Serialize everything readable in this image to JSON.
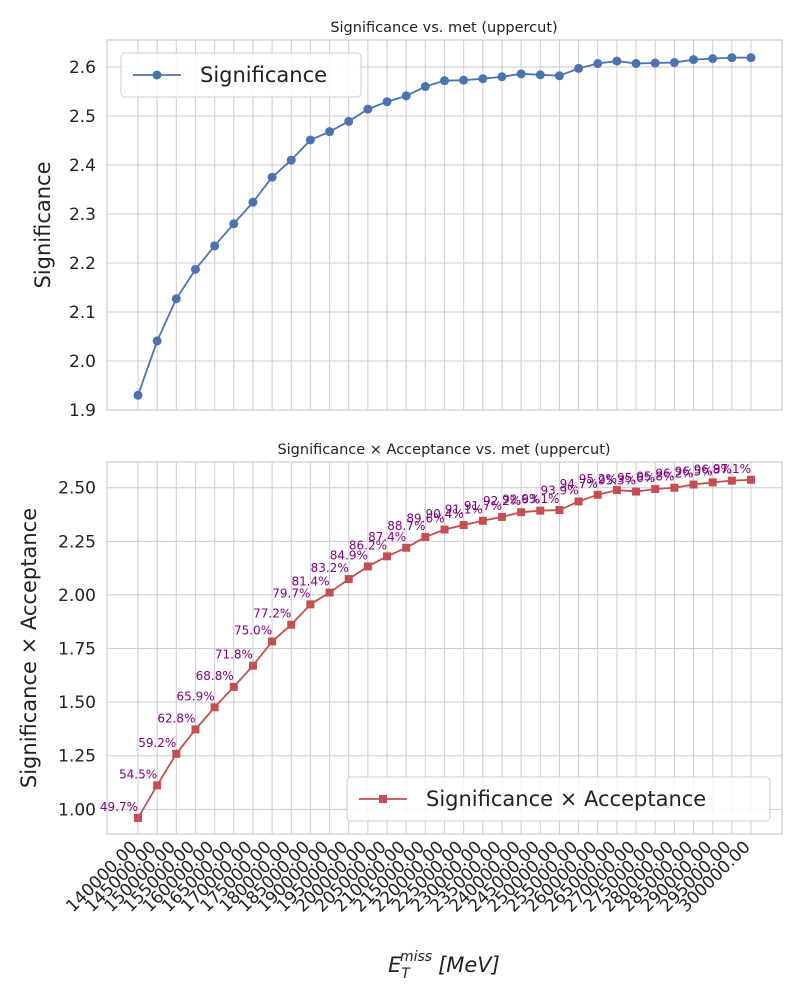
{
  "x_tick_labels": [
    "140000.00",
    "145000.00",
    "150000.00",
    "155000.00",
    "160000.00",
    "165000.00",
    "170000.00",
    "175000.00",
    "180000.00",
    "185000.00",
    "190000.00",
    "195000.00",
    "200000.00",
    "205000.00",
    "210000.00",
    "215000.00",
    "220000.00",
    "225000.00",
    "230000.00",
    "235000.00",
    "240000.00",
    "245000.00",
    "250000.00",
    "255000.00",
    "260000.00",
    "265000.00",
    "270000.00",
    "275000.00",
    "280000.00",
    "285000.00",
    "290000.00",
    "295000.00",
    "300000.00"
  ],
  "x_label_main": "E",
  "x_label_sub": "T",
  "x_label_sup": "miss",
  "x_label_unit": "[MeV]",
  "chart_data": [
    {
      "type": "line",
      "title": "Significance vs. met (uppercut)",
      "ylabel": "Significance",
      "ylim": [
        1.9,
        2.655
      ],
      "y_ticks": [
        "1.9",
        "2.0",
        "2.1",
        "2.2",
        "2.3",
        "2.4",
        "2.5",
        "2.6"
      ],
      "grid": true,
      "legend_position": "top-left",
      "x": [
        140000,
        145000,
        150000,
        155000,
        160000,
        165000,
        170000,
        175000,
        180000,
        185000,
        190000,
        195000,
        200000,
        205000,
        210000,
        215000,
        220000,
        225000,
        230000,
        235000,
        240000,
        245000,
        250000,
        255000,
        260000,
        265000,
        270000,
        275000,
        280000,
        285000,
        290000,
        295000,
        300000
      ],
      "series": [
        {
          "name": "Significance",
          "color": "#4c72b0",
          "marker": "circle",
          "values": [
            1.93,
            2.041,
            2.127,
            2.187,
            2.235,
            2.28,
            2.324,
            2.375,
            2.41,
            2.451,
            2.468,
            2.489,
            2.514,
            2.529,
            2.541,
            2.56,
            2.572,
            2.573,
            2.576,
            2.58,
            2.586,
            2.584,
            2.582,
            2.597,
            2.607,
            2.612,
            2.607,
            2.608,
            2.609,
            2.615,
            2.617,
            2.619,
            2.619
          ]
        }
      ]
    },
    {
      "type": "line",
      "title": "Significance × Acceptance vs. met (uppercut)",
      "ylabel": "Significance × Acceptance",
      "ylim": [
        0.885,
        2.62
      ],
      "y_ticks": [
        "1.00",
        "1.25",
        "1.50",
        "1.75",
        "2.00",
        "2.25",
        "2.50"
      ],
      "grid": true,
      "legend_position": "lower-right",
      "x": [
        140000,
        145000,
        150000,
        155000,
        160000,
        165000,
        170000,
        175000,
        180000,
        185000,
        190000,
        195000,
        200000,
        205000,
        210000,
        215000,
        220000,
        225000,
        230000,
        235000,
        240000,
        245000,
        250000,
        255000,
        260000,
        265000,
        270000,
        275000,
        280000,
        285000,
        290000,
        295000,
        300000
      ],
      "series": [
        {
          "name": "Significance × Acceptance",
          "color": "#c44e52",
          "marker": "square",
          "values": [
            0.96,
            1.112,
            1.259,
            1.373,
            1.476,
            1.571,
            1.67,
            1.783,
            1.861,
            1.956,
            2.011,
            2.074,
            2.133,
            2.18,
            2.22,
            2.27,
            2.305,
            2.326,
            2.346,
            2.364,
            2.386,
            2.393,
            2.396,
            2.436,
            2.467,
            2.489,
            2.482,
            2.494,
            2.5,
            2.515,
            2.525,
            2.533,
            2.537
          ]
        }
      ],
      "annotations": [
        "49.7%",
        "54.5%",
        "59.2%",
        "62.8%",
        "65.9%",
        "68.8%",
        "71.8%",
        "75.0%",
        "77.2%",
        "79.7%",
        "81.4%",
        "83.2%",
        "84.9%",
        "86.2%",
        "87.4%",
        "88.7%",
        "89.6%",
        "90.4%",
        "91.1%",
        "91.7%",
        "92.2%",
        "92.6%",
        "93.1%",
        "93.9%",
        "94.7%",
        "95.2%",
        "95.3%",
        "95.6%",
        "95.8%",
        "96.2%",
        "96.5%",
        "96.8%",
        "97.1%"
      ]
    }
  ]
}
